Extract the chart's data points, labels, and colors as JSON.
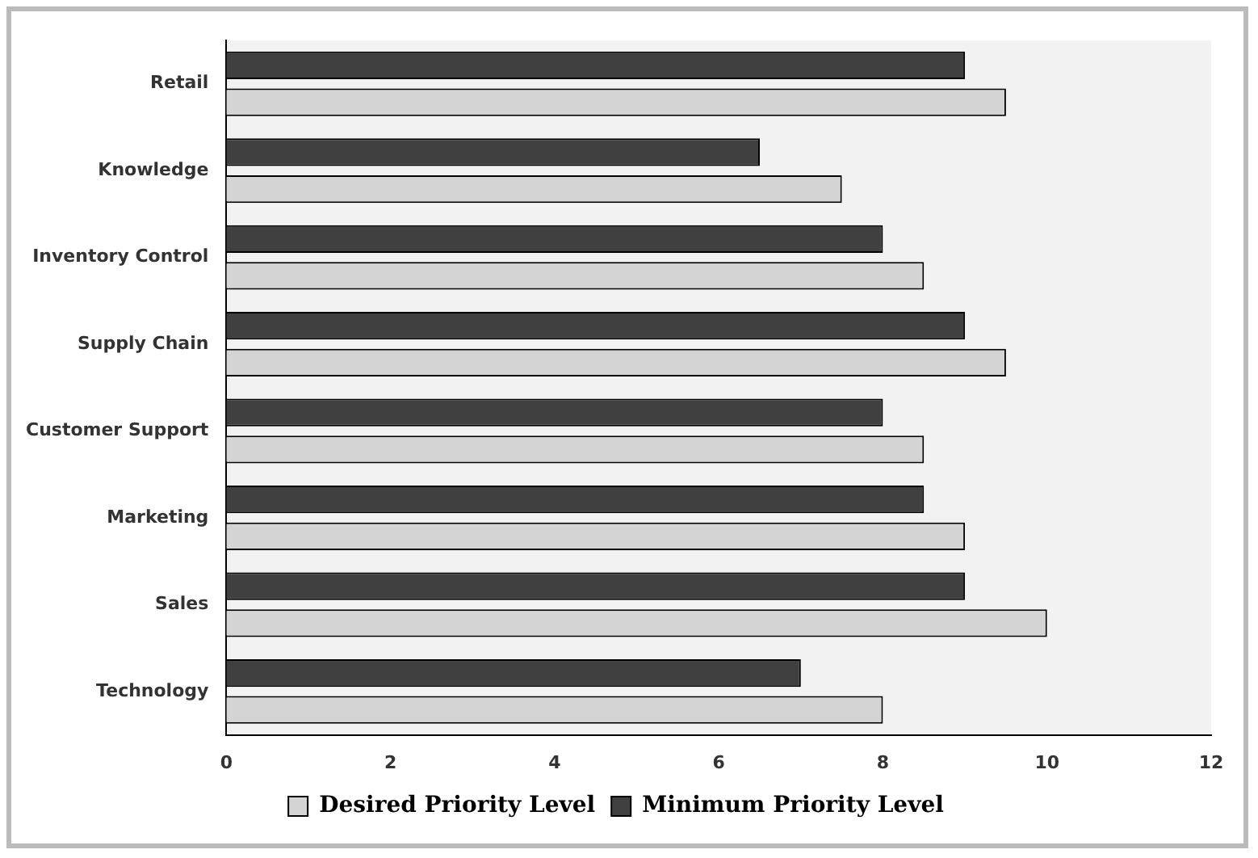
{
  "chart_data": {
    "type": "bar",
    "orientation": "horizontal",
    "categories": [
      "Retail",
      "Knowledge",
      "Inventory Control",
      "Supply Chain",
      "Customer Support",
      "Marketing",
      "Sales",
      "Technology"
    ],
    "series": [
      {
        "name": "Desired Priority Level",
        "color": "#d4d4d4",
        "values": [
          9.5,
          7.5,
          8.5,
          9.5,
          8.5,
          9,
          10,
          8
        ]
      },
      {
        "name": "Minimum Priority Level",
        "color": "#404040",
        "values": [
          9,
          6.5,
          8,
          9,
          8,
          8.5,
          9,
          7
        ]
      }
    ],
    "xlim": [
      0,
      12
    ],
    "xticks": [
      0,
      2,
      4,
      6,
      8,
      10,
      12
    ],
    "grid": false,
    "legend": "bottom"
  }
}
